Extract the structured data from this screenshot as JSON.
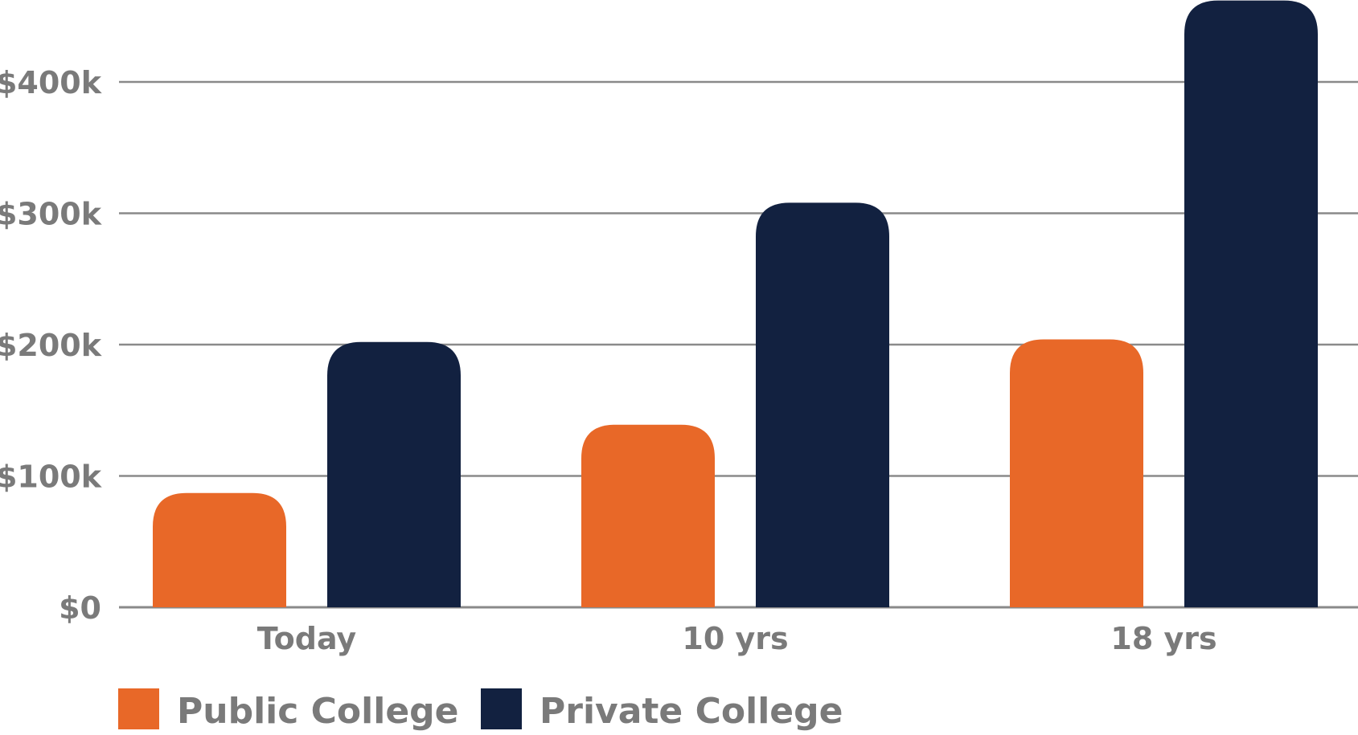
{
  "chart_data": {
    "type": "bar",
    "categories": [
      "Today",
      "10 yrs",
      "18 yrs"
    ],
    "series": [
      {
        "name": "Public College",
        "values": [
          87000,
          139000,
          204000
        ],
        "color": "#e86828"
      },
      {
        "name": "Private College",
        "values": [
          202000,
          308000,
          462000
        ],
        "color": "#122140"
      }
    ],
    "yticks": [
      {
        "value": 0,
        "label": "$0"
      },
      {
        "value": 100000,
        "label": "$100k"
      },
      {
        "value": 200000,
        "label": "$200k"
      },
      {
        "value": 300000,
        "label": "$300k"
      },
      {
        "value": 400000,
        "label": "$400k"
      }
    ],
    "ylim": [
      0,
      462000
    ],
    "grid": true,
    "legend_position": "bottom-left",
    "gridline_color": "#8a8a8a",
    "label_color": "#7a7a7a"
  }
}
